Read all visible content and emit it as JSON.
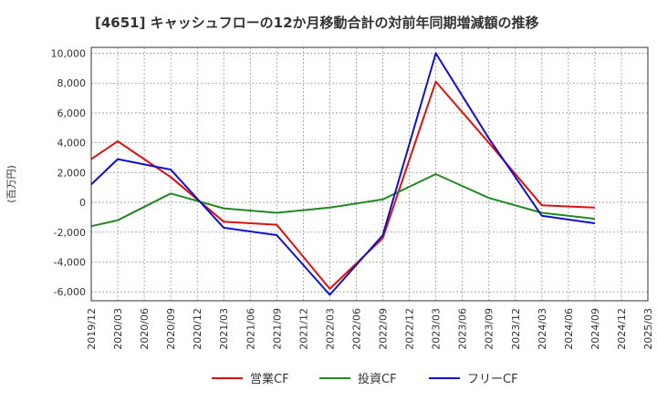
{
  "chart_data": {
    "type": "line",
    "title": "[4651]  キャッシュフローの12か月移動合計の対前年同期増減額の推移",
    "ylabel": "(百万円)",
    "xlabel": "",
    "ylim": [
      -6600,
      10400
    ],
    "yticks": [
      10000,
      8000,
      6000,
      4000,
      2000,
      0,
      -2000,
      -4000,
      -6000
    ],
    "ytick_labels": [
      "10,000",
      "8,000",
      "6,000",
      "4,000",
      "2,000",
      "0",
      "-2,000",
      "-4,000",
      "-6,000"
    ],
    "categories": [
      "2019/12",
      "2020/03",
      "2020/06",
      "2020/09",
      "2020/12",
      "2021/03",
      "2021/06",
      "2021/09",
      "2021/12",
      "2022/03",
      "2022/06",
      "2022/09",
      "2022/12",
      "2023/03",
      "2023/06",
      "2023/09",
      "2023/12",
      "2024/03",
      "2024/06",
      "2024/09",
      "2024/12",
      "2025/03"
    ],
    "grid": true,
    "legend_position": "bottom",
    "series": [
      {
        "name": "営業CF",
        "color": "#dd1111",
        "values": [
          2900,
          4100,
          null,
          1700,
          null,
          -1300,
          null,
          -1500,
          null,
          -5800,
          null,
          -2400,
          null,
          8100,
          null,
          4000,
          null,
          -200,
          null,
          -350,
          null,
          null
        ]
      },
      {
        "name": "投資CF",
        "color": "#228822",
        "values": [
          -1600,
          -1200,
          null,
          600,
          null,
          -400,
          null,
          -700,
          null,
          -350,
          null,
          200,
          null,
          1900,
          null,
          300,
          null,
          -700,
          null,
          -1100,
          null,
          null
        ]
      },
      {
        "name": "フリーCF",
        "color": "#1111cc",
        "values": [
          1200,
          2900,
          null,
          2200,
          null,
          -1700,
          null,
          -2200,
          null,
          -6200,
          null,
          -2200,
          null,
          10000,
          null,
          4300,
          null,
          -900,
          null,
          -1400,
          null,
          null
        ]
      }
    ]
  }
}
